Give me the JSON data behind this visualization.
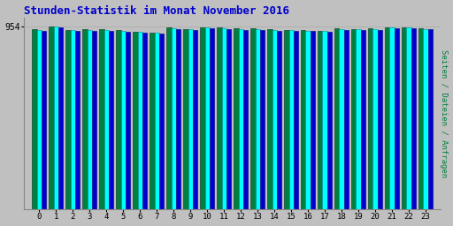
{
  "title": "Stunden-Statistik im Monat November 2016",
  "ylabel": "Seiten / Dateien / Anfragen",
  "ytick_label": "954",
  "hours": [
    0,
    1,
    2,
    3,
    4,
    5,
    6,
    7,
    8,
    9,
    10,
    11,
    12,
    13,
    14,
    15,
    16,
    17,
    18,
    19,
    20,
    21,
    22,
    23
  ],
  "seiten": [
    940,
    954,
    936,
    937,
    937,
    933,
    927,
    922,
    948,
    940,
    949,
    948,
    943,
    942,
    939,
    936,
    935,
    932,
    942,
    940,
    942,
    948,
    949,
    943
  ],
  "dateien": [
    936,
    952,
    933,
    934,
    933,
    930,
    924,
    919,
    945,
    937,
    947,
    945,
    940,
    940,
    936,
    933,
    932,
    929,
    939,
    937,
    939,
    946,
    947,
    941
  ],
  "anfragen": [
    930,
    948,
    929,
    930,
    930,
    926,
    920,
    915,
    940,
    933,
    943,
    941,
    936,
    936,
    932,
    929,
    928,
    924,
    935,
    933,
    935,
    942,
    943,
    937
  ],
  "bar_width": 0.28,
  "bg_color": "#c0c0c0",
  "plot_bg": "#c0c0c0",
  "color_seiten": "#008040",
  "color_dateien": "#00ffff",
  "color_anfragen": "#0000cc",
  "title_color": "#0000cc",
  "ylabel_color": "#008040",
  "ymin": 0,
  "ymax": 1000,
  "ytick_val": 954,
  "ytick_pos_ratio": 0.954
}
